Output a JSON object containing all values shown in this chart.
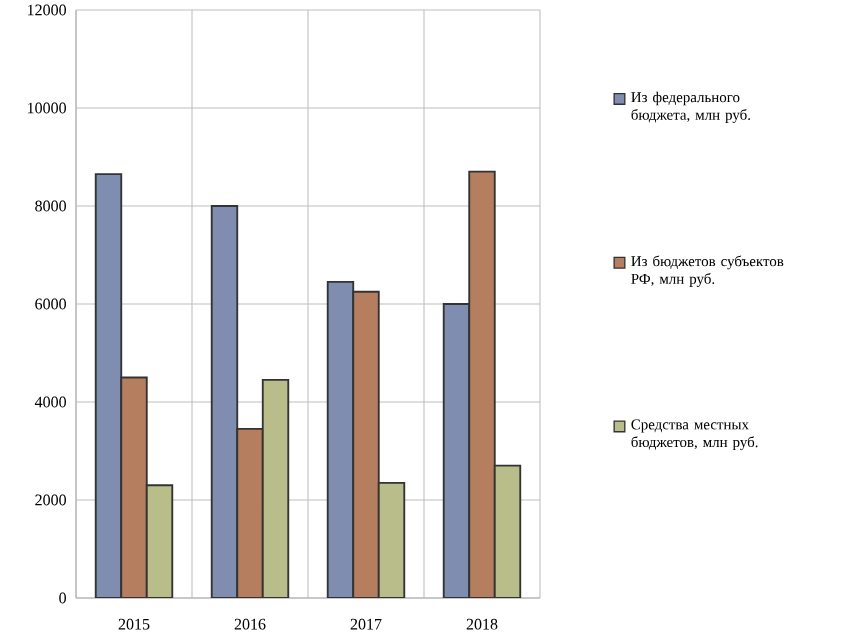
{
  "chart_data": {
    "type": "bar",
    "categories": [
      "2015",
      "2016",
      "2017",
      "2018"
    ],
    "series": [
      {
        "name": "Из федерального бюджета, млн руб.",
        "color": "#7f8db0",
        "values": [
          8650,
          8000,
          6450,
          6000
        ]
      },
      {
        "name": "Из бюджетов субъектов РФ, млн руб.",
        "color": "#b57e5e",
        "values": [
          4500,
          3450,
          6250,
          8700
        ]
      },
      {
        "name": "Средства местных бюджетов, млн руб.",
        "color": "#b9bd8a",
        "values": [
          2300,
          4450,
          2350,
          2700
        ]
      }
    ],
    "ylim": [
      0,
      12000
    ],
    "yticks": [
      0,
      2000,
      4000,
      6000,
      8000,
      10000,
      12000
    ],
    "grid": true,
    "legend": "right"
  }
}
